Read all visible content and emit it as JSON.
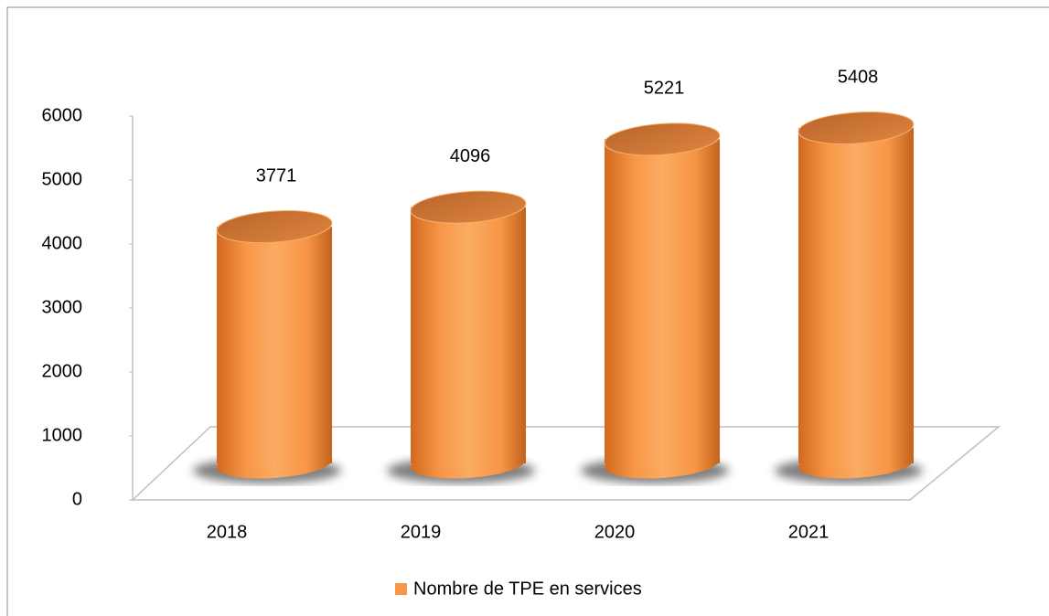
{
  "chart_data": {
    "type": "bar",
    "categories": [
      "2018",
      "2019",
      "2020",
      "2021"
    ],
    "series": [
      {
        "name": "Nombre de TPE en services",
        "color": "#f79646",
        "values": [
          3771,
          4096,
          5221,
          5408
        ]
      }
    ],
    "ylim": [
      0,
      6000
    ],
    "yticks": [
      0,
      1000,
      2000,
      3000,
      4000,
      5000,
      6000
    ],
    "grid": false,
    "legend": "bottom"
  }
}
